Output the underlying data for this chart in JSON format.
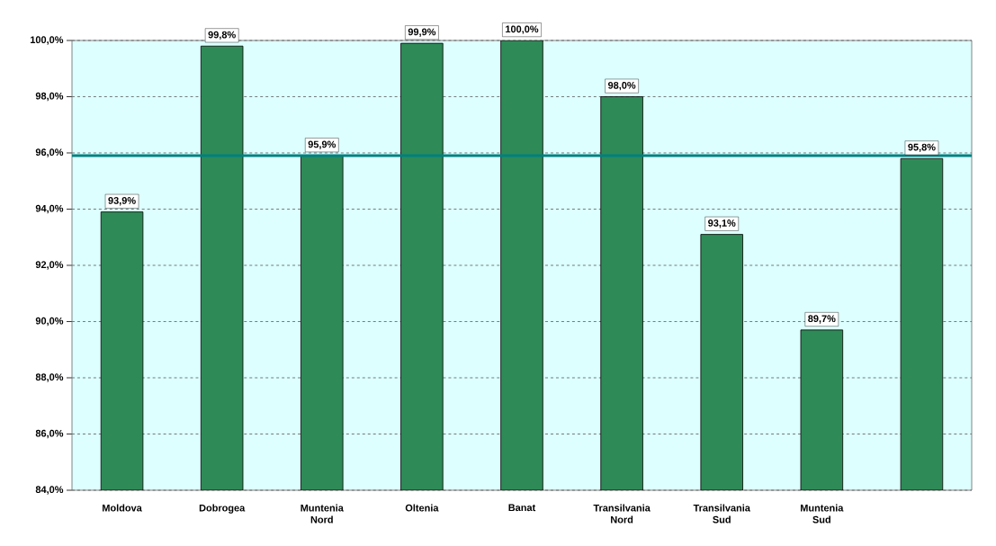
{
  "chart_data": {
    "type": "bar",
    "categories": [
      "Moldova",
      "Dobrogea",
      "Muntenia Nord",
      "Oltenia",
      "Banat",
      "Transilvania Nord",
      "Transilvania Sud",
      "Muntenia Sud",
      null
    ],
    "values": [
      93.9,
      99.8,
      95.9,
      99.9,
      100.0,
      98.0,
      93.1,
      89.7,
      95.8
    ],
    "value_labels": [
      "93,9%",
      "99,8%",
      "95,9%",
      "99,9%",
      "100,0%",
      "98,0%",
      "93,1%",
      "89,7%",
      "95,8%"
    ],
    "color": "#2e8b57",
    "ylim": [
      84,
      100
    ],
    "yticks": [
      {
        "value": 84,
        "label": "84,0%"
      },
      {
        "value": 86,
        "label": "86,0%"
      },
      {
        "value": 88,
        "label": "88,0%"
      },
      {
        "value": 90,
        "label": "90,0%"
      },
      {
        "value": 92,
        "label": "92,0%"
      },
      {
        "value": 94,
        "label": "94,0%"
      },
      {
        "value": 96,
        "label": "96,0%"
      },
      {
        "value": 98,
        "label": "98,0%"
      },
      {
        "value": 100,
        "label": "100,0%"
      }
    ],
    "grid": "y",
    "ref_lines": [
      {
        "axis": "y",
        "value": 95.9,
        "color": "#008080"
      }
    ]
  }
}
